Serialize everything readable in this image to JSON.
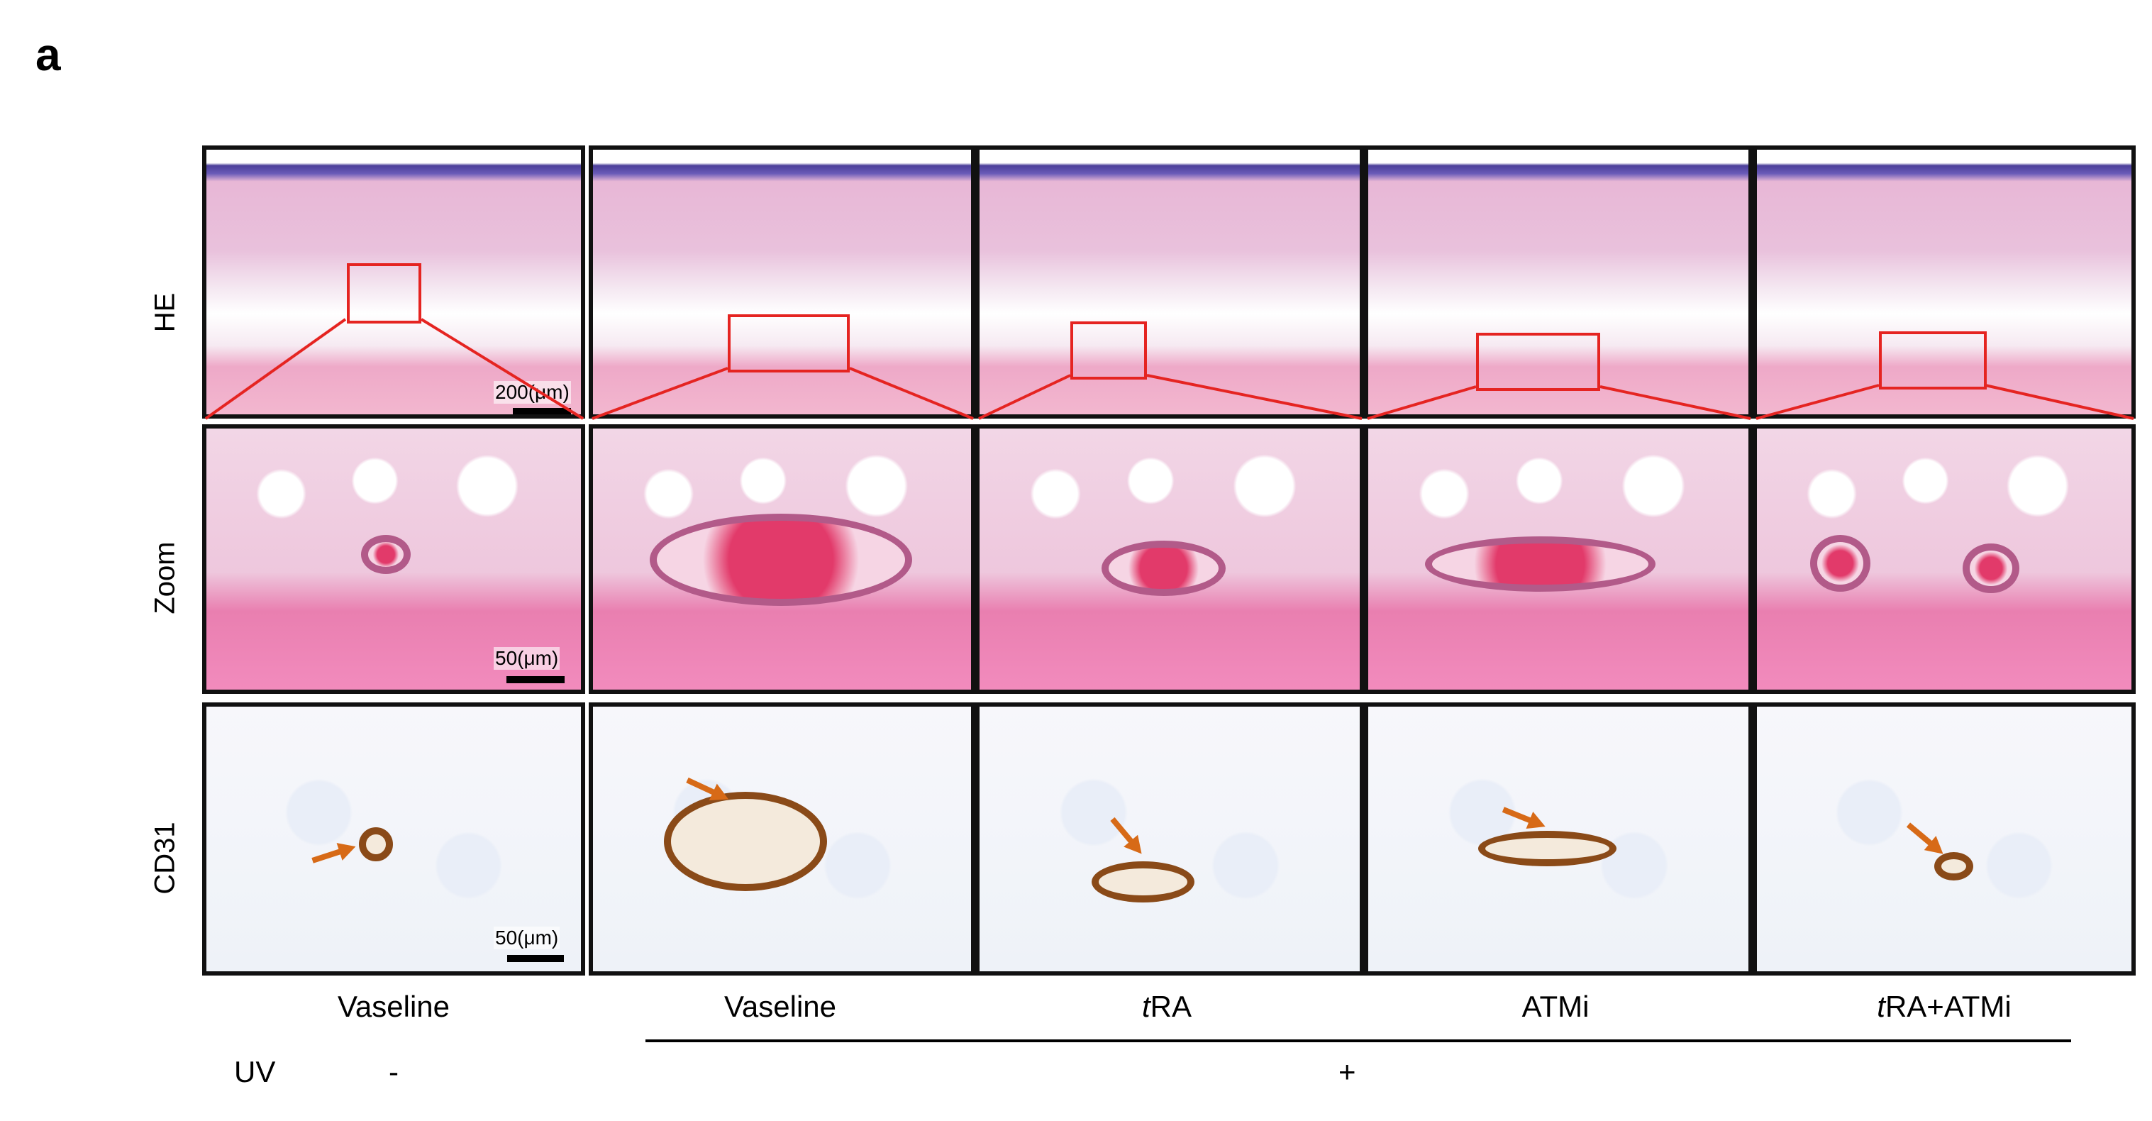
{
  "panel_letter": "a",
  "row_labels": [
    "HE",
    "Zoom",
    "CD31"
  ],
  "columns": [
    {
      "label": "Vaseline",
      "italic_prefix": ""
    },
    {
      "label": "Vaseline",
      "italic_prefix": ""
    },
    {
      "label": "RA",
      "italic_prefix": "t"
    },
    {
      "label": "ATMi",
      "italic_prefix": ""
    },
    {
      "label": "RA+ATMi",
      "italic_prefix": "t"
    }
  ],
  "uv": {
    "label": "UV",
    "minus": "-",
    "plus": "+"
  },
  "scale_bars": {
    "he": "200(μm)",
    "zoom": "50(μm)",
    "cd31": "50(μm)"
  },
  "colors": {
    "roi": "#e52421",
    "arrow": "#d76a17",
    "border": "#111111"
  }
}
